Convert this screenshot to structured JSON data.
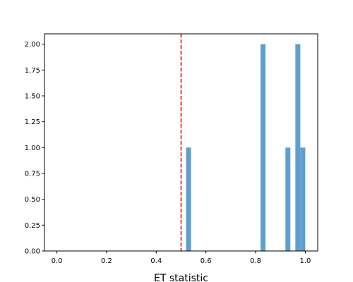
{
  "chart_data": {
    "type": "bar",
    "title": "",
    "xlabel": "ET statistic",
    "ylabel": "",
    "xlim": [
      -0.05,
      1.05
    ],
    "ylim": [
      0,
      2.1
    ],
    "x_ticks": [
      0.0,
      0.2,
      0.4,
      0.6,
      0.8,
      1.0
    ],
    "x_tick_labels": [
      "0.0",
      "0.2",
      "0.4",
      "0.6",
      "0.8",
      "1.0"
    ],
    "y_ticks": [
      0,
      0.25,
      0.5,
      0.75,
      1.0,
      1.25,
      1.5,
      1.75,
      2.0
    ],
    "y_tick_labels": [
      "0.00",
      "0.25",
      "0.50",
      "0.75",
      "1.00",
      "1.25",
      "1.50",
      "1.75",
      "2.00"
    ],
    "bin_width": 0.02,
    "bars": [
      {
        "x": 0.53,
        "value": 1
      },
      {
        "x": 0.83,
        "value": 2
      },
      {
        "x": 0.93,
        "value": 1
      },
      {
        "x": 0.97,
        "value": 2
      },
      {
        "x": 0.99,
        "value": 1
      }
    ],
    "bar_color": "#5f9fcf",
    "reference_line": {
      "x": 0.5,
      "color": "#dd0000",
      "style": "dashed"
    },
    "grid": false,
    "legend": "none"
  }
}
